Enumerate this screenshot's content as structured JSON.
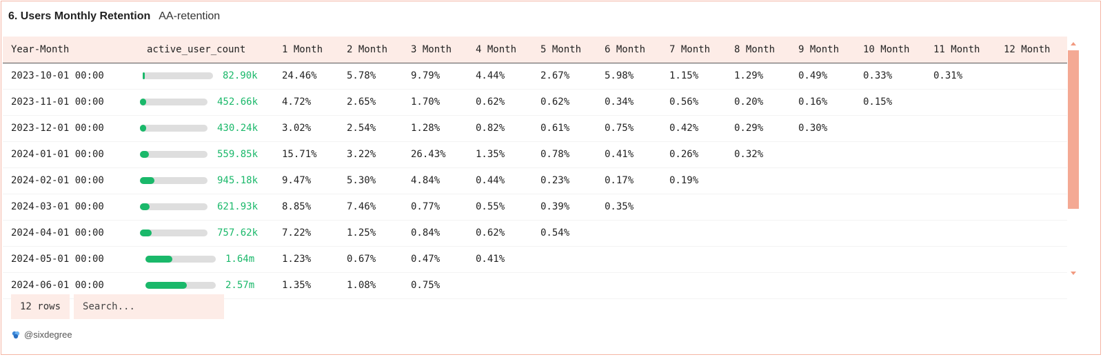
{
  "header": {
    "title": "6. Users Monthly Retention",
    "subtitle": "AA-retention"
  },
  "table": {
    "columns": [
      "Year-Month",
      "active_user_count",
      "1 Month",
      "2 Month",
      "3 Month",
      "4 Month",
      "5 Month",
      "6 Month",
      "7 Month",
      "8 Month",
      "9 Month",
      "10 Month",
      "11 Month",
      "12 Month"
    ],
    "rows": [
      {
        "ym": "2023-10-01 00:00",
        "count": "82.90k",
        "fill": 0.01,
        "vals": [
          "24.46%",
          "5.78%",
          "9.79%",
          "4.44%",
          "2.67%",
          "5.98%",
          "1.15%",
          "1.29%",
          "0.49%",
          "0.33%",
          "0.31%",
          ""
        ]
      },
      {
        "ym": "2023-11-01 00:00",
        "count": "452.66k",
        "fill": 0.09,
        "vals": [
          "4.72%",
          "2.65%",
          "1.70%",
          "0.62%",
          "0.62%",
          "0.34%",
          "0.56%",
          "0.20%",
          "0.16%",
          "0.15%",
          "",
          ""
        ]
      },
      {
        "ym": "2023-12-01 00:00",
        "count": "430.24k",
        "fill": 0.09,
        "vals": [
          "3.02%",
          "2.54%",
          "1.28%",
          "0.82%",
          "0.61%",
          "0.75%",
          "0.42%",
          "0.29%",
          "0.30%",
          "",
          "",
          ""
        ]
      },
      {
        "ym": "2024-01-01 00:00",
        "count": "559.85k",
        "fill": 0.13,
        "vals": [
          "15.71%",
          "3.22%",
          "26.43%",
          "1.35%",
          "0.78%",
          "0.41%",
          "0.26%",
          "0.32%",
          "",
          "",
          "",
          ""
        ]
      },
      {
        "ym": "2024-02-01 00:00",
        "count": "945.18k",
        "fill": 0.21,
        "vals": [
          "9.47%",
          "5.30%",
          "4.84%",
          "0.44%",
          "0.23%",
          "0.17%",
          "0.19%",
          "",
          "",
          "",
          "",
          ""
        ]
      },
      {
        "ym": "2024-03-01 00:00",
        "count": "621.93k",
        "fill": 0.14,
        "vals": [
          "8.85%",
          "7.46%",
          "0.77%",
          "0.55%",
          "0.39%",
          "0.35%",
          "",
          "",
          "",
          "",
          "",
          ""
        ]
      },
      {
        "ym": "2024-04-01 00:00",
        "count": "757.62k",
        "fill": 0.17,
        "vals": [
          "7.22%",
          "1.25%",
          "0.84%",
          "0.62%",
          "0.54%",
          "",
          "",
          "",
          "",
          "",
          "",
          ""
        ]
      },
      {
        "ym": "2024-05-01 00:00",
        "count": "1.64m",
        "fill": 0.38,
        "vals": [
          "1.23%",
          "0.67%",
          "0.47%",
          "0.41%",
          "",
          "",
          "",
          "",
          "",
          "",
          "",
          ""
        ]
      },
      {
        "ym": "2024-06-01 00:00",
        "count": "2.57m",
        "fill": 0.59,
        "vals": [
          "1.35%",
          "1.08%",
          "0.75%",
          "",
          "",
          "",
          "",
          "",
          "",
          "",
          "",
          ""
        ]
      }
    ]
  },
  "footer": {
    "rows_label": "12 rows",
    "search_placeholder": "Search...",
    "brand": "@sixdegree"
  },
  "colors": {
    "accent": "#f4a994",
    "header_bg": "#fdece7",
    "bar_fill": "#1ab86a",
    "bar_track": "#dedede"
  }
}
